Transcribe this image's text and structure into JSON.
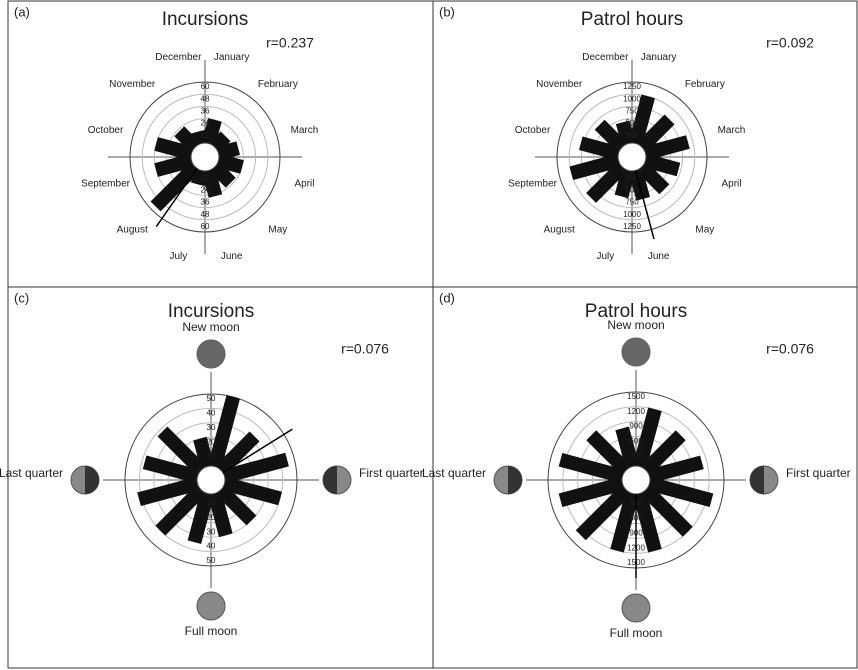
{
  "chart_data": [
    {
      "type": "polar_bar",
      "panel_label": "(a)",
      "title": "Incursions",
      "annotation": "r=0.237",
      "categories": [
        "January",
        "February",
        "March",
        "April",
        "May",
        "June",
        "July",
        "August",
        "September",
        "October",
        "November",
        "December"
      ],
      "values": [
        24,
        15,
        20,
        24,
        22,
        26,
        14,
        55,
        36,
        36,
        22,
        12
      ],
      "rlim": [
        0,
        60
      ],
      "rticks": [
        12,
        24,
        36,
        48,
        60
      ],
      "mean_angle": 215,
      "color": "#111"
    },
    {
      "type": "polar_bar",
      "panel_label": "(b)",
      "title": "Patrol hours",
      "annotation": "r=0.092",
      "categories": [
        "January",
        "February",
        "March",
        "April",
        "May",
        "June",
        "July",
        "August",
        "September",
        "October",
        "November",
        "December"
      ],
      "values": [
        1000,
        800,
        900,
        700,
        650,
        600,
        550,
        900,
        1000,
        800,
        650,
        450
      ],
      "rlim": [
        0,
        1250
      ],
      "rticks": [
        250,
        500,
        750,
        1000,
        1250
      ],
      "mean_angle": 165,
      "color": "#111"
    },
    {
      "type": "polar_bar",
      "panel_label": "(c)",
      "title": "Incursions",
      "annotation": "r=0.076",
      "phases": [
        "New moon",
        "First quarter",
        "Full moon",
        "Last quarter"
      ],
      "values": [
        50,
        33,
        45,
        40,
        30,
        30,
        35,
        40,
        42,
        38,
        38,
        20
      ],
      "rlim": [
        0,
        50
      ],
      "rticks": [
        10,
        20,
        30,
        40,
        50
      ],
      "mean_angle": 58,
      "color": "#111"
    },
    {
      "type": "polar_bar",
      "panel_label": "(d)",
      "title": "Patrol hours",
      "annotation": "r=0.076",
      "phases": [
        "New moon",
        "First quarter",
        "Full moon",
        "Last quarter"
      ],
      "values": [
        1200,
        1000,
        1100,
        1300,
        1200,
        1200,
        1200,
        1300,
        1300,
        1300,
        1000,
        800
      ],
      "rlim": [
        0,
        1500
      ],
      "rticks": [
        300,
        600,
        900,
        1200,
        1500
      ],
      "mean_angle": 180,
      "color": "#111"
    }
  ]
}
